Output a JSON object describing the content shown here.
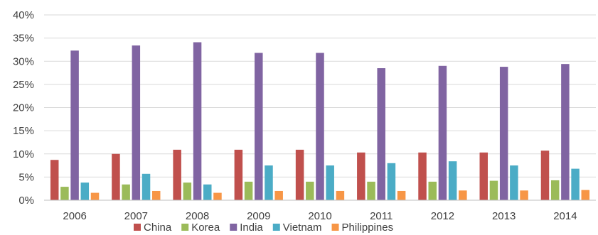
{
  "chart_data": {
    "type": "bar",
    "title": "",
    "xlabel": "",
    "ylabel": "",
    "categories": [
      "2006",
      "2007",
      "2008",
      "2009",
      "2010",
      "2011",
      "2012",
      "2013",
      "2014"
    ],
    "series": [
      {
        "name": "China",
        "color": "#c0504d",
        "values": [
          8.7,
          10.0,
          10.9,
          10.9,
          10.9,
          10.3,
          10.3,
          10.3,
          10.7
        ]
      },
      {
        "name": "Korea",
        "color": "#9bbb59",
        "values": [
          2.9,
          3.4,
          3.8,
          4.0,
          4.0,
          4.0,
          4.0,
          4.2,
          4.3
        ]
      },
      {
        "name": "India",
        "color": "#8064a2",
        "values": [
          32.3,
          33.4,
          34.1,
          31.8,
          31.8,
          28.5,
          29.0,
          28.8,
          29.4
        ]
      },
      {
        "name": "Vietnam",
        "color": "#4bacc6",
        "values": [
          3.8,
          5.7,
          3.4,
          7.5,
          7.5,
          8.0,
          8.4,
          7.5,
          6.8
        ]
      },
      {
        "name": "Philippines",
        "color": "#f79646",
        "values": [
          1.6,
          2.0,
          1.6,
          2.0,
          2.0,
          2.0,
          2.1,
          2.1,
          2.2
        ]
      }
    ],
    "ylim": [
      0,
      40
    ],
    "yticks": [
      "0%",
      "5%",
      "10%",
      "15%",
      "20%",
      "25%",
      "30%",
      "35%",
      "40%"
    ],
    "ytick_values": [
      0,
      5,
      10,
      15,
      20,
      25,
      30,
      35,
      40
    ],
    "grid": true,
    "legend_position": "bottom"
  }
}
